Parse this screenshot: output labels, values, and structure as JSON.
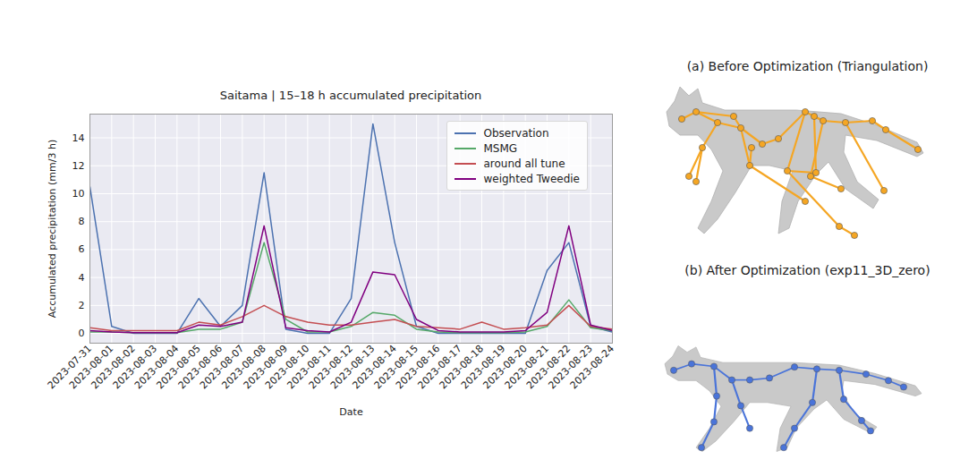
{
  "chart_data": {
    "type": "line",
    "title": "Saitama | 15–18 h accumulated precipitation",
    "x_label": "Date",
    "y_label": "Accumulated precipitation (mm/3 h)",
    "x": [
      "2023-07-31",
      "2023-08-01",
      "2023-08-02",
      "2023-08-03",
      "2023-08-04",
      "2023-08-05",
      "2023-08-06",
      "2023-08-07",
      "2023-08-08",
      "2023-08-09",
      "2023-08-10",
      "2023-08-11",
      "2023-08-12",
      "2023-08-13",
      "2023-08-14",
      "2023-08-15",
      "2023-08-16",
      "2023-08-17",
      "2023-08-18",
      "2023-08-19",
      "2023-08-20",
      "2023-08-21",
      "2023-08-22",
      "2023-08-23",
      "2023-08-24"
    ],
    "series": [
      {
        "name": "Observation",
        "color": "#4c72b0",
        "values": [
          10.5,
          0.5,
          0,
          0,
          0,
          2.5,
          0.5,
          2.0,
          11.5,
          0.3,
          0,
          0,
          2.5,
          15.0,
          6.5,
          0.5,
          0,
          0,
          0,
          0,
          0,
          4.5,
          6.5,
          0.5,
          0.1
        ]
      },
      {
        "name": "MSMG",
        "color": "#55a868",
        "values": [
          0.1,
          0.1,
          0.05,
          0.05,
          0.05,
          0.3,
          0.3,
          0.8,
          6.5,
          1.0,
          0.1,
          0.1,
          0.5,
          1.5,
          1.3,
          0.3,
          0.1,
          0.05,
          0.05,
          0.05,
          0.1,
          0.5,
          2.4,
          0.4,
          0.2
        ]
      },
      {
        "name": "around all tune",
        "color": "#c44e52",
        "values": [
          0.4,
          0.2,
          0.2,
          0.2,
          0.2,
          0.8,
          0.6,
          1.2,
          2.0,
          1.2,
          0.8,
          0.6,
          0.6,
          0.8,
          1.0,
          0.5,
          0.4,
          0.3,
          0.8,
          0.3,
          0.4,
          0.6,
          2.0,
          0.5,
          0.3
        ]
      },
      {
        "name": "weighted Tweedie",
        "color": "#800080",
        "values": [
          0.2,
          0.1,
          0.05,
          0.05,
          0.05,
          0.6,
          0.5,
          0.8,
          7.7,
          0.4,
          0.2,
          0.1,
          0.8,
          4.4,
          4.2,
          1.0,
          0.2,
          0.1,
          0.1,
          0.1,
          0.2,
          1.5,
          7.7,
          0.6,
          0.2
        ]
      }
    ],
    "xlim": [
      "2023-07-31",
      "2023-08-24"
    ],
    "xticks": [
      "2023-07-31",
      "2023-08-01",
      "2023-08-02",
      "2023-08-03",
      "2023-08-04",
      "2023-08-05",
      "2023-08-06",
      "2023-08-07",
      "2023-08-08",
      "2023-08-09",
      "2023-08-10",
      "2023-08-11",
      "2023-08-12",
      "2023-08-13",
      "2023-08-14",
      "2023-08-15",
      "2023-08-16",
      "2023-08-17",
      "2023-08-18",
      "2023-08-19",
      "2023-08-20",
      "2023-08-21",
      "2023-08-22",
      "2023-08-23",
      "2023-08-24"
    ],
    "ylim": [
      -0.7,
      15.7
    ],
    "yticks": [
      0,
      2,
      4,
      6,
      8,
      10,
      12,
      14
    ],
    "grid": true,
    "legend": "upper right"
  },
  "figure": {
    "panels": [
      {
        "title": "(a) Before Optimization (Triangulation)"
      },
      {
        "title": "(b) After Optimization (exp11_3D_zero)"
      }
    ]
  }
}
